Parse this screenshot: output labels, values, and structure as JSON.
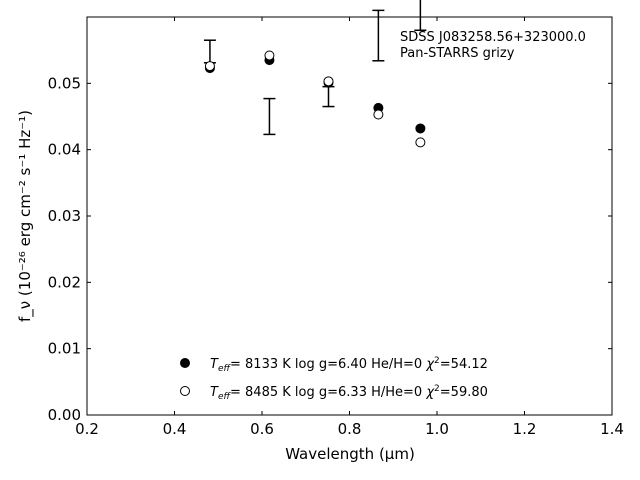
{
  "chart_data": {
    "type": "scatter",
    "xlabel": "Wavelength (μm)",
    "ylabel": "f_ν (10⁻²⁶ erg cm⁻² s⁻¹ Hz⁻¹)",
    "xlim": [
      0.2,
      1.4
    ],
    "ylim": [
      0.0,
      0.06
    ],
    "xticks": [
      "0.2",
      "0.4",
      "0.6",
      "0.8",
      "1.0",
      "1.2",
      "1.4"
    ],
    "yticks": [
      "0.00",
      "0.01",
      "0.02",
      "0.03",
      "0.04",
      "0.05"
    ],
    "grid": false,
    "annotation": [
      "SDSS J083258.56+323000.0",
      "Pan-STARRS grizy"
    ],
    "observed": {
      "x": [
        0.481,
        0.617,
        0.752,
        0.866,
        0.962
      ],
      "y": [
        0.0548,
        0.045,
        0.048,
        0.0572,
        0.065
      ],
      "yerr": [
        0.0017,
        0.0027,
        0.0015,
        0.0038,
        0.007
      ]
    },
    "series": [
      {
        "name": "T_eff=  8133 K  log g=6.40  He/H=0  χ²=54.12",
        "marker": "filled-circle",
        "x": [
          0.481,
          0.617,
          0.752,
          0.866,
          0.962
        ],
        "y": [
          0.0523,
          0.0535,
          0.0501,
          0.0463,
          0.0432
        ]
      },
      {
        "name": "T_eff=  8485 K  log g=6.33  H/He=0  χ²=59.80",
        "marker": "open-circle",
        "x": [
          0.481,
          0.617,
          0.752,
          0.866,
          0.962
        ],
        "y": [
          0.0526,
          0.0542,
          0.0503,
          0.0453,
          0.0411
        ]
      }
    ],
    "legend": {
      "placement": "lower-center",
      "entries": [
        {
          "marker": "filled-circle",
          "teff": "8133 K",
          "logg": "log g=6.40",
          "comp": "He/H=0",
          "chi": "=54.12"
        },
        {
          "marker": "open-circle",
          "teff": "8485 K",
          "logg": "log g=6.33",
          "comp": "H/He=0",
          "chi": "=59.80"
        }
      ]
    }
  }
}
